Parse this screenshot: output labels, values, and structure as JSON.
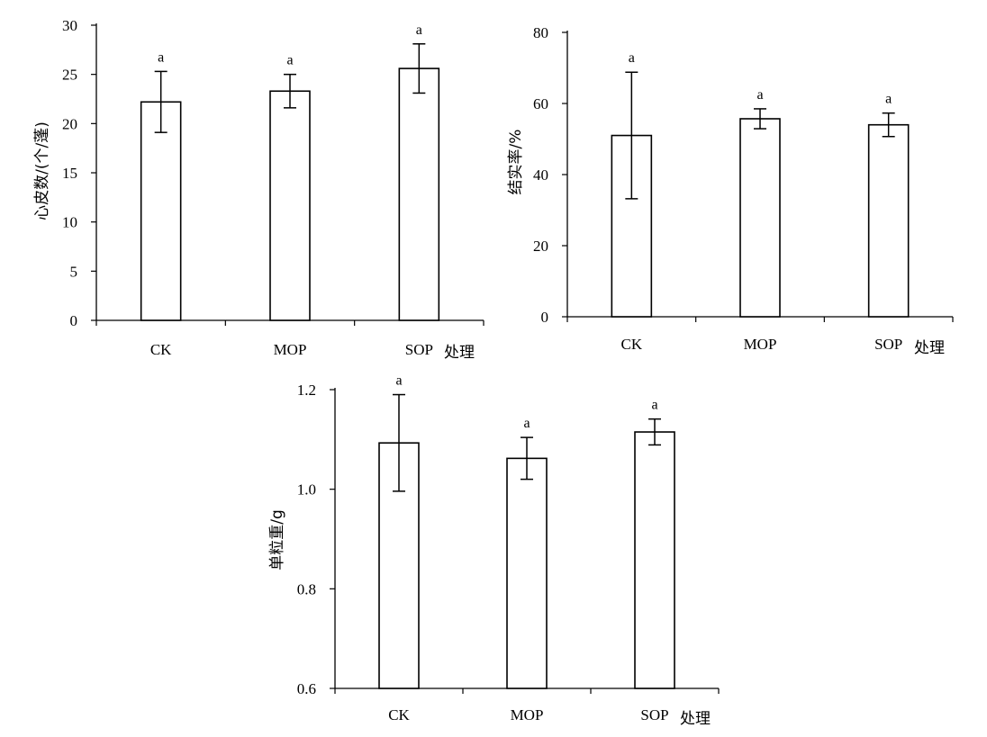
{
  "chart_data": [
    {
      "type": "bar",
      "categories": [
        "CK",
        "MOP",
        "SOP"
      ],
      "values": [
        22.2,
        23.3,
        25.6
      ],
      "errors": [
        3.1,
        1.7,
        2.5
      ],
      "significance": [
        "a",
        "a",
        "a"
      ],
      "title": "",
      "xlabel": "处理",
      "ylabel": "心皮数/(个/蓬)",
      "ylim": [
        0,
        30
      ],
      "yticks": [
        "0",
        "5",
        "10",
        "15",
        "20",
        "25",
        "30"
      ],
      "grid": false
    },
    {
      "type": "bar",
      "categories": [
        "CK",
        "MOP",
        "SOP"
      ],
      "values": [
        51,
        55.7,
        54
      ],
      "errors": [
        17.8,
        2.8,
        3.3
      ],
      "significance": [
        "a",
        "a",
        "a"
      ],
      "title": "",
      "xlabel": "处理",
      "ylabel": "结实率/%",
      "ylim": [
        0,
        80
      ],
      "yticks": [
        "0",
        "20",
        "40",
        "60",
        "80"
      ],
      "grid": false
    },
    {
      "type": "bar",
      "categories": [
        "CK",
        "MOP",
        "SOP"
      ],
      "values": [
        1.093,
        1.062,
        1.115
      ],
      "errors": [
        0.097,
        0.042,
        0.026
      ],
      "significance": [
        "a",
        "a",
        "a"
      ],
      "title": "",
      "xlabel": "处理",
      "ylabel": "单粒重/g",
      "ylim": [
        0.6,
        1.2
      ],
      "yticks": [
        "0.6",
        "0.8",
        "1.0",
        "1.2"
      ],
      "grid": false
    }
  ]
}
